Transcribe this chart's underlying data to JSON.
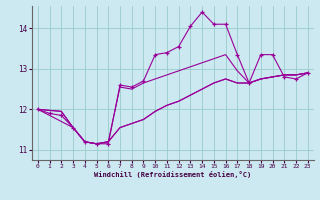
{
  "xlabel": "Windchill (Refroidissement éolien,°C)",
  "bg_color": "#cce8f0",
  "line_color": "#990099",
  "grid_color": "#99cccc",
  "xlim": [
    -0.5,
    23.5
  ],
  "ylim": [
    10.75,
    14.55
  ],
  "yticks": [
    11,
    12,
    13,
    14
  ],
  "xticks": [
    0,
    1,
    2,
    3,
    4,
    5,
    6,
    7,
    8,
    9,
    10,
    11,
    12,
    13,
    14,
    15,
    16,
    17,
    18,
    19,
    20,
    21,
    22,
    23
  ],
  "series1": [
    [
      0,
      12.0
    ],
    [
      1,
      11.9
    ],
    [
      2,
      11.85
    ],
    [
      3,
      11.55
    ],
    [
      4,
      11.2
    ],
    [
      5,
      11.15
    ],
    [
      6,
      11.15
    ],
    [
      7,
      12.6
    ],
    [
      8,
      12.55
    ],
    [
      9,
      12.7
    ],
    [
      10,
      13.35
    ],
    [
      11,
      13.4
    ],
    [
      12,
      13.55
    ],
    [
      13,
      14.05
    ],
    [
      14,
      14.4
    ],
    [
      15,
      14.1
    ],
    [
      16,
      14.1
    ],
    [
      17,
      13.35
    ],
    [
      18,
      12.65
    ],
    [
      19,
      13.35
    ],
    [
      20,
      13.35
    ],
    [
      21,
      12.8
    ],
    [
      22,
      12.75
    ],
    [
      23,
      12.9
    ]
  ],
  "series2": [
    [
      0,
      12.0
    ],
    [
      2,
      11.95
    ],
    [
      3,
      11.55
    ],
    [
      4,
      11.2
    ],
    [
      5,
      11.15
    ],
    [
      6,
      11.2
    ],
    [
      7,
      11.55
    ],
    [
      8,
      11.65
    ],
    [
      9,
      11.75
    ],
    [
      10,
      11.95
    ],
    [
      11,
      12.1
    ],
    [
      12,
      12.2
    ],
    [
      13,
      12.35
    ],
    [
      14,
      12.5
    ],
    [
      15,
      12.65
    ],
    [
      16,
      12.75
    ],
    [
      17,
      12.65
    ],
    [
      18,
      12.65
    ],
    [
      19,
      12.75
    ],
    [
      20,
      12.8
    ],
    [
      21,
      12.85
    ],
    [
      22,
      12.85
    ],
    [
      23,
      12.9
    ]
  ],
  "series3": [
    [
      0,
      12.0
    ],
    [
      2,
      11.95
    ],
    [
      3,
      11.55
    ],
    [
      4,
      11.2
    ],
    [
      5,
      11.15
    ],
    [
      6,
      11.2
    ],
    [
      7,
      11.55
    ],
    [
      8,
      11.65
    ],
    [
      9,
      11.75
    ],
    [
      10,
      11.95
    ],
    [
      11,
      12.1
    ],
    [
      12,
      12.2
    ],
    [
      13,
      12.35
    ],
    [
      14,
      12.5
    ],
    [
      15,
      12.65
    ],
    [
      16,
      12.75
    ],
    [
      17,
      12.65
    ],
    [
      18,
      12.65
    ],
    [
      19,
      12.75
    ],
    [
      20,
      12.8
    ],
    [
      21,
      12.85
    ],
    [
      22,
      12.85
    ],
    [
      23,
      12.9
    ]
  ],
  "series4": [
    [
      0,
      12.0
    ],
    [
      3,
      11.55
    ],
    [
      4,
      11.2
    ],
    [
      5,
      11.15
    ],
    [
      6,
      11.2
    ],
    [
      7,
      12.55
    ],
    [
      8,
      12.5
    ],
    [
      9,
      12.65
    ],
    [
      10,
      12.75
    ],
    [
      11,
      12.85
    ],
    [
      12,
      12.95
    ],
    [
      13,
      13.05
    ],
    [
      14,
      13.15
    ],
    [
      15,
      13.25
    ],
    [
      16,
      13.35
    ],
    [
      17,
      12.95
    ],
    [
      18,
      12.65
    ],
    [
      19,
      12.75
    ],
    [
      20,
      12.8
    ],
    [
      21,
      12.85
    ],
    [
      22,
      12.85
    ],
    [
      23,
      12.9
    ]
  ]
}
